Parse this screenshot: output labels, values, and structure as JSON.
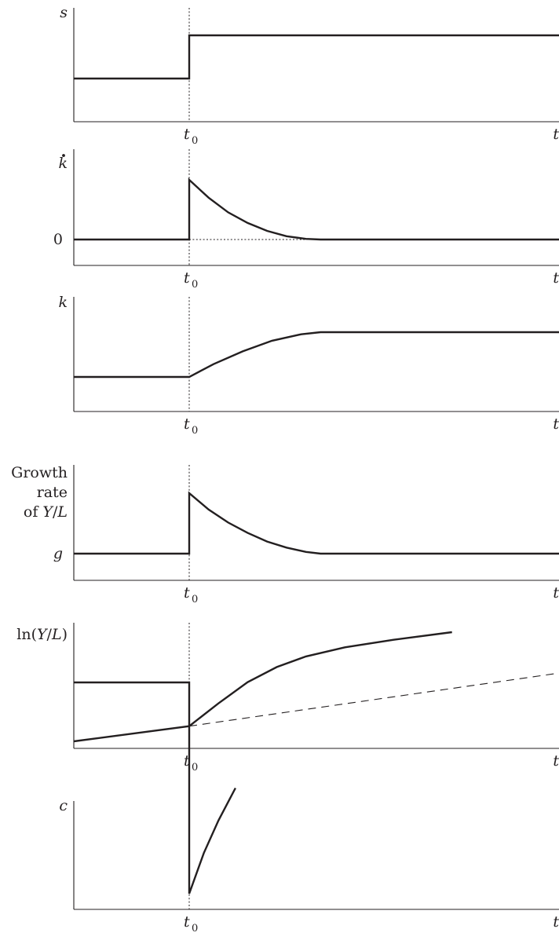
{
  "chart_data": [
    {
      "type": "line",
      "ylabel": "s",
      "xlabel": "t",
      "marker_label": "t",
      "marker_sub": "0",
      "xlim": [
        0,
        10
      ],
      "ylim": [
        0,
        10
      ],
      "marker_x": 2.4,
      "series": [
        {
          "style": "solid",
          "points": [
            [
              0,
              5
            ],
            [
              2.4,
              5
            ],
            [
              2.4,
              10
            ],
            [
              10,
              10
            ]
          ]
        }
      ]
    },
    {
      "type": "line",
      "ylabel": "k̇",
      "xlabel": "t",
      "marker_label": "t",
      "marker_sub": "0",
      "ytick_labels": [
        {
          "value": 0,
          "text": "0"
        }
      ],
      "xlim": [
        0,
        10
      ],
      "ylim": [
        0,
        10
      ],
      "marker_x": 2.4,
      "series": [
        {
          "style": "solid",
          "points": [
            [
              0,
              0
            ],
            [
              2.4,
              0
            ],
            [
              2.4,
              9
            ],
            [
              2.8,
              6.3
            ],
            [
              3.2,
              4.1
            ],
            [
              3.6,
              2.5
            ],
            [
              4.0,
              1.3
            ],
            [
              4.4,
              0.5
            ],
            [
              4.8,
              0.1
            ],
            [
              5.1,
              0
            ],
            [
              10,
              0
            ]
          ]
        },
        {
          "style": "dotted",
          "points": [
            [
              2.4,
              0
            ],
            [
              5.1,
              0
            ]
          ]
        }
      ]
    },
    {
      "type": "line",
      "ylabel": "k",
      "xlabel": "t",
      "marker_label": "t",
      "marker_sub": "0",
      "xlim": [
        0,
        10
      ],
      "ylim": [
        0,
        10
      ],
      "marker_x": 2.4,
      "series": [
        {
          "style": "solid",
          "points": [
            [
              0,
              3
            ],
            [
              2.4,
              3
            ],
            [
              2.9,
              4.2
            ],
            [
              3.5,
              5.4
            ],
            [
              4.1,
              6.4
            ],
            [
              4.7,
              7.0
            ],
            [
              5.1,
              7.2
            ],
            [
              10,
              7.2
            ]
          ]
        }
      ]
    },
    {
      "type": "line",
      "ylabel_lines": [
        "Growth",
        "rate",
        "of Y/L"
      ],
      "xlabel": "t",
      "marker_label": "t",
      "marker_sub": "0",
      "ytick_labels": [
        {
          "value": 2,
          "text": "g"
        }
      ],
      "xlim": [
        0,
        10
      ],
      "ylim": [
        0,
        10
      ],
      "marker_x": 2.4,
      "series": [
        {
          "style": "solid",
          "points": [
            [
              0,
              2
            ],
            [
              2.4,
              2
            ],
            [
              2.4,
              9
            ],
            [
              2.8,
              7.1
            ],
            [
              3.2,
              5.6
            ],
            [
              3.6,
              4.4
            ],
            [
              4.0,
              3.4
            ],
            [
              4.4,
              2.7
            ],
            [
              4.8,
              2.2
            ],
            [
              5.1,
              2
            ],
            [
              10,
              2
            ]
          ]
        }
      ]
    },
    {
      "type": "line",
      "ylabel": "ln(Y/L)",
      "xlabel": "t",
      "marker_label": "t",
      "marker_sub": "0",
      "xlim": [
        0,
        10
      ],
      "ylim": [
        0,
        10
      ],
      "marker_x": 2.4,
      "series": [
        {
          "style": "solid",
          "points": [
            [
              0,
              0.6
            ],
            [
              2.4,
              1.6
            ],
            [
              3.0,
              3.1
            ],
            [
              3.6,
              4.5
            ],
            [
              4.2,
              5.5
            ],
            [
              4.8,
              6.2
            ],
            [
              5.6,
              6.8
            ],
            [
              6.6,
              7.3
            ],
            [
              7.8,
              7.8
            ]
          ]
        },
        {
          "style": "dashed",
          "points": [
            [
              2.4,
              1.6
            ],
            [
              10,
              5.1
            ]
          ]
        }
      ]
    },
    {
      "type": "line",
      "ylabel": "c",
      "xlabel": "t",
      "marker_label": "t",
      "marker_sub": "0",
      "xlim": [
        0,
        10
      ],
      "ylim": [
        0,
        10
      ],
      "marker_x": 2.4,
      "series": [
        {
          "style": "solid",
          "points": [
            [
              0,
              7.6
            ],
            [
              2.4,
              7.6
            ],
            [
              2.4,
              2.4
            ],
            [
              2.7,
              3.4
            ],
            [
              3.0,
              4.2
            ],
            [
              3.35,
              5.0
            ]
          ]
        }
      ]
    }
  ]
}
